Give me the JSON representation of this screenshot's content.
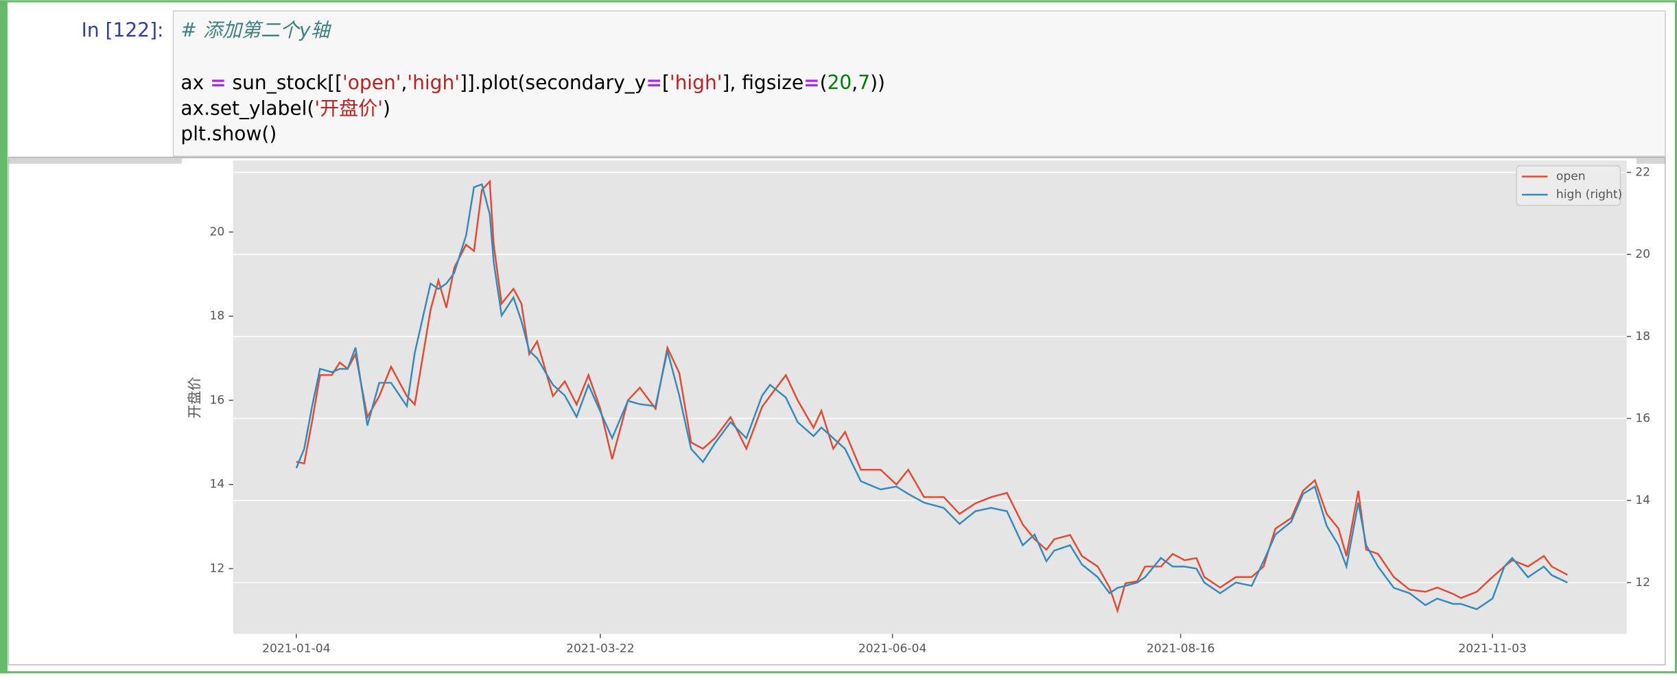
{
  "cell": {
    "prompt": "In [122]:",
    "code": [
      [
        "# 添加第二个y轴"
      ],
      [
        "ax ",
        "=",
        " sun_stock[[",
        "'open'",
        ",",
        "'high'",
        "]].plot(secondary_y",
        "=",
        "[",
        "'high'",
        "], figsize",
        "=",
        "(",
        "20",
        ",",
        "7",
        "))"
      ],
      [
        "ax.set_ylabel(",
        "'开盘价'",
        ")"
      ],
      [
        "plt.show()"
      ]
    ]
  },
  "chart_data": {
    "type": "line",
    "ylabel": "开盘价",
    "x": [
      "2021-01-04",
      "2021-01-06",
      "2021-01-08",
      "2021-01-10",
      "2021-01-13",
      "2021-01-15",
      "2021-01-17",
      "2021-01-19",
      "2021-01-22",
      "2021-01-25",
      "2021-01-28",
      "2021-02-01",
      "2021-02-03",
      "2021-02-07",
      "2021-02-09",
      "2021-02-11",
      "2021-02-13",
      "2021-02-16",
      "2021-02-18",
      "2021-02-20",
      "2021-02-22",
      "2021-02-23",
      "2021-02-25",
      "2021-02-28",
      "2021-03-02",
      "2021-03-04",
      "2021-03-06",
      "2021-03-10",
      "2021-03-13",
      "2021-03-16",
      "2021-03-19",
      "2021-03-22",
      "2021-03-25",
      "2021-03-29",
      "2021-04-01",
      "2021-04-05",
      "2021-04-08",
      "2021-04-11",
      "2021-04-14",
      "2021-04-17",
      "2021-04-20",
      "2021-04-24",
      "2021-04-28",
      "2021-05-02",
      "2021-05-04",
      "2021-05-08",
      "2021-05-11",
      "2021-05-15",
      "2021-05-17",
      "2021-05-20",
      "2021-05-23",
      "2021-05-27",
      "2021-06-01",
      "2021-06-05",
      "2021-06-08",
      "2021-06-12",
      "2021-06-17",
      "2021-06-21",
      "2021-06-25",
      "2021-06-29",
      "2021-07-03",
      "2021-07-07",
      "2021-07-10",
      "2021-07-13",
      "2021-07-15",
      "2021-07-19",
      "2021-07-22",
      "2021-07-26",
      "2021-07-29",
      "2021-07-31",
      "2021-08-02",
      "2021-08-05",
      "2021-08-07",
      "2021-08-11",
      "2021-08-14",
      "2021-08-17",
      "2021-08-20",
      "2021-08-22",
      "2021-08-26",
      "2021-08-30",
      "2021-09-03",
      "2021-09-06",
      "2021-09-09",
      "2021-09-13",
      "2021-09-16",
      "2021-09-19",
      "2021-09-22",
      "2021-09-25",
      "2021-09-27",
      "2021-09-30",
      "2021-10-02",
      "2021-10-05",
      "2021-10-09",
      "2021-10-13",
      "2021-10-17",
      "2021-10-20",
      "2021-10-24",
      "2021-10-26",
      "2021-10-30",
      "2021-11-03",
      "2021-11-06",
      "2021-11-08",
      "2021-11-12",
      "2021-11-16",
      "2021-11-18",
      "2021-11-22"
    ],
    "series": [
      {
        "name": "open",
        "color": "#e24a33",
        "values": [
          14.54,
          14.5,
          15.5,
          16.6,
          16.6,
          16.9,
          16.75,
          17.1,
          15.6,
          16.1,
          16.8,
          16.1,
          15.9,
          18.15,
          18.85,
          18.2,
          19.15,
          19.7,
          19.55,
          21.0,
          21.2,
          19.7,
          18.3,
          18.65,
          18.3,
          17.1,
          17.4,
          16.1,
          16.45,
          15.9,
          16.6,
          15.8,
          14.6,
          16.0,
          16.3,
          15.8,
          17.25,
          16.65,
          15.0,
          14.85,
          15.1,
          15.6,
          14.85,
          15.85,
          16.1,
          16.6,
          16.0,
          15.35,
          15.75,
          14.85,
          15.25,
          14.35,
          14.35,
          14.0,
          14.35,
          13.7,
          13.7,
          13.3,
          13.55,
          13.7,
          13.8,
          13.05,
          12.7,
          12.45,
          12.7,
          12.8,
          12.3,
          12.05,
          11.55,
          11.0,
          11.65,
          11.7,
          12.05,
          12.05,
          12.35,
          12.2,
          12.25,
          11.8,
          11.55,
          11.8,
          11.8,
          12.05,
          12.95,
          13.2,
          13.85,
          14.1,
          13.3,
          12.95,
          12.3,
          13.85,
          12.45,
          12.35,
          11.8,
          11.5,
          11.45,
          11.55,
          11.4,
          11.3,
          11.45,
          11.8,
          12.05,
          12.2,
          12.05,
          12.3,
          12.05,
          11.85
        ]
      },
      {
        "name": "high (right)",
        "color": "#348abd",
        "axis": "y2",
        "values": [
          14.79,
          15.26,
          16.3,
          17.21,
          17.13,
          17.21,
          17.21,
          17.73,
          15.83,
          16.87,
          16.87,
          16.3,
          17.6,
          19.29,
          19.16,
          19.29,
          19.55,
          20.46,
          21.64,
          21.71,
          20.98,
          19.81,
          18.51,
          18.95,
          18.38,
          17.65,
          17.47,
          16.82,
          16.56,
          16.04,
          16.82,
          16.17,
          15.52,
          16.43,
          16.35,
          16.3,
          17.65,
          16.56,
          15.26,
          14.94,
          15.39,
          15.91,
          15.52,
          16.56,
          16.82,
          16.51,
          15.91,
          15.57,
          15.78,
          15.52,
          15.26,
          14.47,
          14.27,
          14.34,
          14.16,
          13.95,
          13.82,
          13.43,
          13.74,
          13.82,
          13.74,
          12.91,
          13.17,
          12.52,
          12.78,
          12.91,
          12.44,
          12.13,
          11.74,
          11.87,
          11.92,
          12.0,
          12.13,
          12.6,
          12.39,
          12.39,
          12.34,
          12.0,
          11.74,
          12.0,
          11.92,
          12.52,
          13.17,
          13.48,
          14.16,
          14.34,
          13.38,
          12.91,
          12.39,
          13.95,
          12.91,
          12.39,
          11.87,
          11.74,
          11.45,
          11.61,
          11.48,
          11.48,
          11.35,
          11.61,
          12.39,
          12.6,
          12.13,
          12.39,
          12.18,
          12.0
        ]
      }
    ],
    "xlim": [
      "2020-12-19",
      "2021-12-07"
    ],
    "xticks": [
      "2021-01-04",
      "2021-03-22",
      "2021-06-04",
      "2021-08-16",
      "2021-11-03"
    ],
    "ylim": [
      10.45,
      21.7
    ],
    "yticks": [
      12,
      14,
      16,
      18,
      20
    ],
    "y2lim": [
      10.75,
      22.29
    ],
    "y2ticks": [
      12,
      14,
      16,
      18,
      20,
      22
    ],
    "grid": "y2",
    "legend_loc": "upper right",
    "background": "#e5e5e5"
  }
}
